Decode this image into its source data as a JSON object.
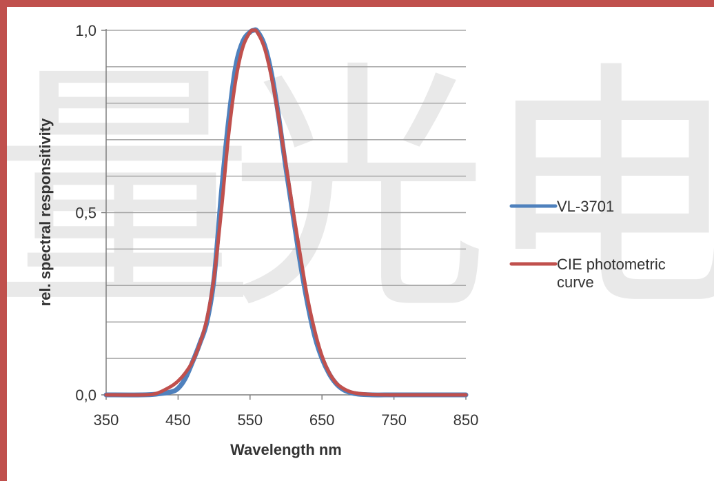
{
  "colors": {
    "frame": "#c0504d",
    "grid": "#a6a6a6",
    "axis": "#7f7f7f",
    "vl3701": "#4f81bd",
    "cie": "#c0504d",
    "watermark": "#e9e9e9"
  },
  "watermark": {
    "chars": [
      "量",
      "光",
      "电"
    ]
  },
  "chart_data": {
    "type": "line",
    "title": "",
    "xlabel": "Wavelength nm",
    "ylabel": "rel. spectral responsitivity",
    "xlim": [
      350,
      850
    ],
    "ylim": [
      0,
      1
    ],
    "x_ticks": [
      350,
      450,
      550,
      650,
      750,
      850
    ],
    "x_tick_labels": [
      "350",
      "450",
      "550",
      "650",
      "750",
      "850"
    ],
    "y_ticks": [
      0,
      0.5,
      1
    ],
    "y_tick_labels": [
      "0,0",
      "0,5",
      "1,0"
    ],
    "y_gridlines": [
      0.1,
      0.2,
      0.3,
      0.4,
      0.5,
      0.6,
      0.7,
      0.8,
      0.9,
      1.0
    ],
    "grid": true,
    "legend_position": "right",
    "series": [
      {
        "name": "VL-3701",
        "color": "#4f81bd",
        "x": [
          350,
          400,
          420,
          440,
          450,
          460,
          470,
          480,
          490,
          500,
          510,
          520,
          530,
          540,
          550,
          555,
          560,
          570,
          580,
          590,
          600,
          610,
          620,
          630,
          640,
          650,
          660,
          670,
          680,
          690,
          700,
          720,
          750,
          800,
          850
        ],
        "y": [
          0,
          0,
          0.002,
          0.008,
          0.018,
          0.045,
          0.09,
          0.14,
          0.2,
          0.32,
          0.55,
          0.75,
          0.9,
          0.97,
          0.995,
          1.0,
          0.998,
          0.96,
          0.88,
          0.76,
          0.62,
          0.49,
          0.36,
          0.25,
          0.16,
          0.1,
          0.058,
          0.03,
          0.014,
          0.006,
          0.002,
          0,
          0,
          0,
          0
        ]
      },
      {
        "name": "CIE photometric curve",
        "color": "#c0504d",
        "x": [
          350,
          400,
          420,
          440,
          450,
          460,
          470,
          480,
          490,
          500,
          510,
          520,
          530,
          540,
          550,
          555,
          560,
          570,
          580,
          590,
          600,
          610,
          620,
          630,
          640,
          650,
          660,
          670,
          680,
          690,
          700,
          720,
          750,
          800,
          850
        ],
        "y": [
          0,
          0,
          0.004,
          0.023,
          0.038,
          0.06,
          0.091,
          0.139,
          0.208,
          0.323,
          0.503,
          0.71,
          0.862,
          0.954,
          0.995,
          1.0,
          0.995,
          0.952,
          0.87,
          0.757,
          0.631,
          0.503,
          0.381,
          0.265,
          0.175,
          0.107,
          0.061,
          0.032,
          0.017,
          0.008,
          0.004,
          0.001,
          0,
          0,
          0
        ]
      }
    ]
  }
}
